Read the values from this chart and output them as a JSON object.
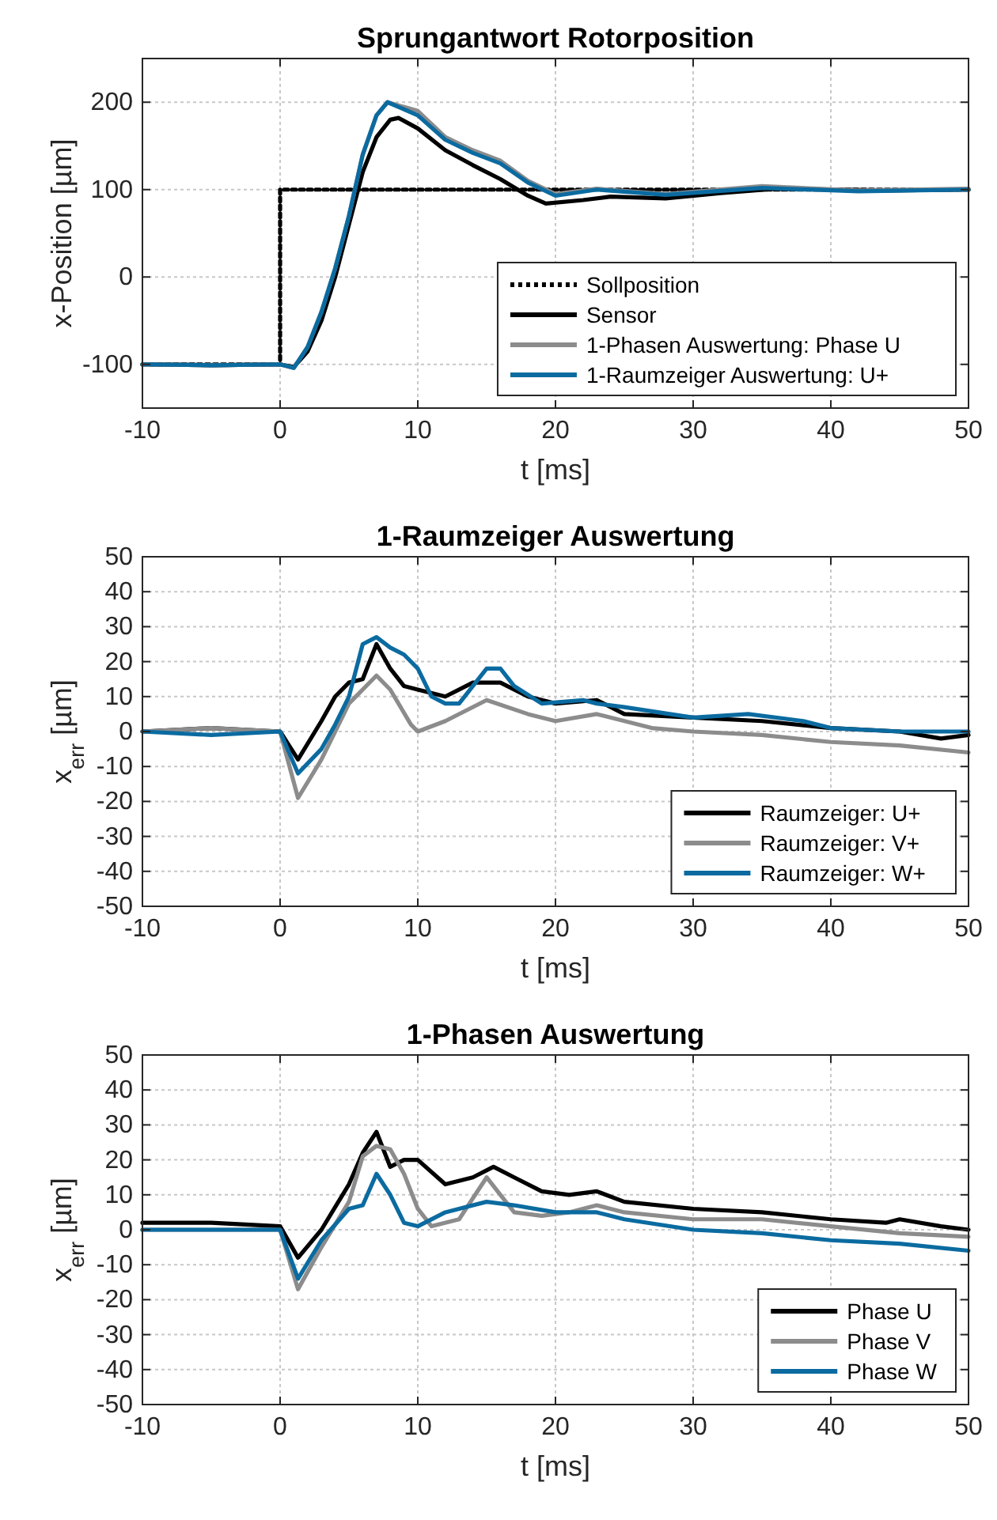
{
  "chart_data": [
    {
      "type": "line",
      "title": "Sprungantwort Rotorposition",
      "xlabel": "t [ms]",
      "ylabel": "x-Position [µm]",
      "xlim": [
        -10,
        50
      ],
      "xticks": [
        -10,
        0,
        10,
        20,
        30,
        40,
        50
      ],
      "ylim": [
        -150,
        250
      ],
      "yticks": [
        -100,
        0,
        100,
        200
      ],
      "grid": true,
      "legend": "bottom right",
      "series": [
        {
          "name": "Sollposition",
          "color": "#000000",
          "line_style": "dotted",
          "x": [
            -10,
            0,
            0,
            50
          ],
          "values": [
            -100,
            -100,
            100,
            100
          ]
        },
        {
          "name": "Sensor",
          "color": "#000000",
          "x": [
            -10,
            -5,
            0,
            1,
            2,
            3,
            4,
            5,
            6,
            7,
            8,
            8.6,
            10,
            12,
            14,
            16,
            18,
            19.3,
            22,
            24,
            28,
            32,
            36,
            44,
            50
          ],
          "values": [
            -100,
            -101,
            -100,
            -103,
            -85,
            -50,
            0,
            60,
            120,
            160,
            180,
            182,
            170,
            145,
            128,
            112,
            93,
            84,
            88,
            92,
            90,
            96,
            101,
            99,
            100
          ]
        },
        {
          "name": "1-Phasen Auswertung: Phase U",
          "color": "#8c8c8c",
          "x": [
            -10,
            -5,
            0,
            1,
            2,
            3,
            4,
            5,
            6,
            7,
            7.8,
            10,
            12,
            14,
            16,
            18,
            20,
            23,
            28,
            35,
            42,
            50
          ],
          "values": [
            -100,
            -101,
            -100,
            -104,
            -80,
            -40,
            10,
            70,
            140,
            185,
            200,
            190,
            160,
            145,
            133,
            110,
            95,
            101,
            95,
            104,
            99,
            101
          ]
        },
        {
          "name": "1-Raumzeiger Auswertung: U+",
          "color": "#0b6ba0",
          "x": [
            -10,
            -5,
            0,
            1,
            2,
            3,
            4,
            5,
            6,
            7,
            7.8,
            10,
            12,
            14,
            16,
            18,
            20,
            23,
            28,
            35,
            42,
            50
          ],
          "values": [
            -100,
            -101,
            -100,
            -104,
            -80,
            -40,
            10,
            70,
            140,
            185,
            200,
            185,
            157,
            142,
            130,
            108,
            93,
            100,
            94,
            102,
            98,
            100
          ]
        }
      ]
    },
    {
      "type": "line",
      "title": "1-Raumzeiger Auswertung",
      "xlabel": "t [ms]",
      "ylabel": "x$_{err}$ [µm]",
      "xlim": [
        -10,
        50
      ],
      "xticks": [
        -10,
        0,
        10,
        20,
        30,
        40,
        50
      ],
      "ylim": [
        -50,
        50
      ],
      "yticks": [
        -50,
        -40,
        -30,
        -20,
        -10,
        0,
        10,
        20,
        30,
        40,
        50
      ],
      "grid": true,
      "legend": "bottom right",
      "series": [
        {
          "name": "Raumzeiger: U+",
          "color": "#000000",
          "x": [
            -10,
            -5,
            0,
            1.3,
            3,
            4,
            5,
            6,
            7,
            8,
            9,
            10,
            12,
            14,
            16,
            18,
            20,
            23,
            25,
            30,
            35,
            40,
            45,
            48,
            50
          ],
          "values": [
            0,
            1,
            0,
            -8,
            3,
            10,
            14,
            15,
            25,
            18,
            13,
            12,
            10,
            14,
            14,
            10,
            8,
            9,
            5,
            4,
            3,
            1,
            0,
            -2,
            -1
          ]
        },
        {
          "name": "Raumzeiger: V+",
          "color": "#8c8c8c",
          "x": [
            -10,
            -5,
            0,
            1.3,
            3,
            4,
            5,
            7,
            8,
            9.5,
            10,
            12,
            15,
            18,
            20,
            23,
            27,
            30,
            35,
            40,
            45,
            50
          ],
          "values": [
            0,
            1,
            0,
            -19,
            -8,
            0,
            8,
            16,
            12,
            2,
            0,
            3,
            9,
            5,
            3,
            5,
            1,
            0,
            -1,
            -3,
            -4,
            -6
          ]
        },
        {
          "name": "Raumzeiger: W+",
          "color": "#0b6ba0",
          "x": [
            -10,
            -5,
            0,
            1.3,
            3,
            4,
            5,
            6,
            7,
            8,
            9,
            10,
            11,
            12,
            13,
            15,
            16,
            17,
            19,
            22,
            23,
            25,
            30,
            34,
            38,
            40,
            45,
            50
          ],
          "values": [
            0,
            -1,
            0,
            -12,
            -5,
            2,
            10,
            25,
            27,
            24,
            22,
            18,
            10,
            8,
            8,
            18,
            18,
            13,
            8,
            9,
            8,
            7,
            4,
            5,
            3,
            1,
            0,
            0
          ]
        }
      ]
    },
    {
      "type": "line",
      "title": "1-Phasen Auswertung",
      "xlabel": "t [ms]",
      "ylabel": "x$_{err}$ [µm]",
      "xlim": [
        -10,
        50
      ],
      "xticks": [
        -10,
        0,
        10,
        20,
        30,
        40,
        50
      ],
      "ylim": [
        -50,
        50
      ],
      "yticks": [
        -50,
        -40,
        -30,
        -20,
        -10,
        0,
        10,
        20,
        30,
        40,
        50
      ],
      "grid": true,
      "legend": "bottom right",
      "series": [
        {
          "name": "Phase U",
          "color": "#000000",
          "x": [
            -10,
            -5,
            0,
            1.3,
            3,
            5,
            6,
            7,
            8,
            9,
            10,
            12,
            14,
            15.5,
            17,
            19,
            21,
            23,
            25,
            30,
            35,
            40,
            44,
            45,
            48,
            50
          ],
          "values": [
            2,
            2,
            1,
            -8,
            0,
            13,
            22,
            28,
            18,
            20,
            20,
            13,
            15,
            18,
            15,
            11,
            10,
            11,
            8,
            6,
            5,
            3,
            2,
            3,
            1,
            0
          ]
        },
        {
          "name": "Phase V",
          "color": "#8c8c8c",
          "x": [
            -10,
            0,
            1.3,
            3,
            5,
            6,
            7,
            8,
            9,
            10,
            11,
            13,
            15,
            16,
            17,
            19,
            21,
            23,
            25,
            30,
            35,
            40,
            45,
            50
          ],
          "values": [
            0,
            0,
            -17,
            -5,
            8,
            21,
            24,
            23,
            16,
            6,
            1,
            3,
            15,
            10,
            5,
            4,
            5,
            7,
            5,
            3,
            3,
            1,
            -1,
            -2
          ]
        },
        {
          "name": "Phase W",
          "color": "#0b6ba0",
          "x": [
            -10,
            0,
            1.3,
            3,
            5,
            6,
            7,
            8,
            9,
            10,
            12,
            15,
            17,
            20,
            23,
            25,
            30,
            35,
            40,
            45,
            50
          ],
          "values": [
            0,
            0,
            -14,
            -3,
            6,
            7,
            16,
            10,
            2,
            1,
            5,
            8,
            7,
            5,
            5,
            3,
            0,
            -1,
            -3,
            -4,
            -6
          ]
        }
      ]
    }
  ]
}
